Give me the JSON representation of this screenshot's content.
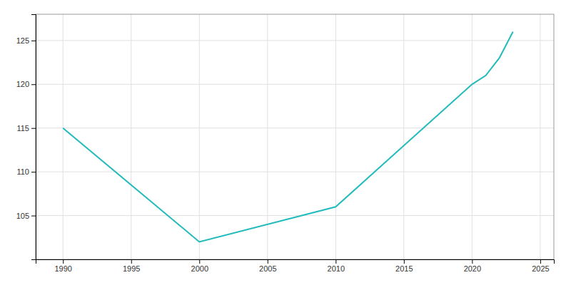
{
  "chart_data": {
    "type": "line",
    "x": [
      1990,
      2000,
      2010,
      2020,
      2021,
      2022,
      2023
    ],
    "values": [
      115,
      102,
      106,
      120,
      121,
      123,
      126
    ],
    "color": "#22BBBB",
    "xlim": [
      1988,
      2026
    ],
    "ylim": [
      100,
      128
    ],
    "xticks": [
      1990,
      1995,
      2000,
      2005,
      2010,
      2015,
      2020,
      2025
    ],
    "yticks": [
      105,
      110,
      115,
      120,
      125
    ],
    "grid": true
  }
}
